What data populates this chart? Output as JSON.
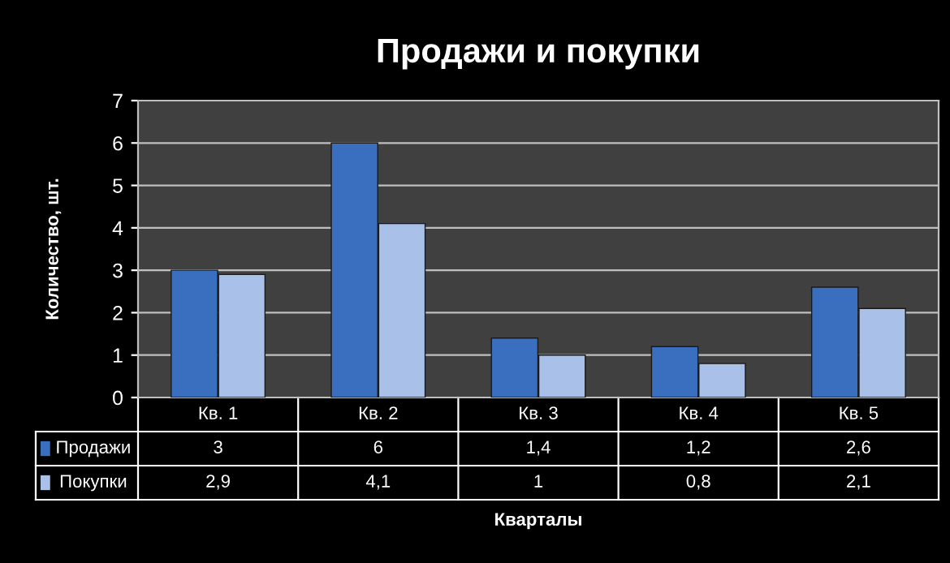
{
  "chart_data": {
    "type": "bar",
    "title": "Продажи и покупки",
    "annotations": [
      "Кварталы"
    ],
    "ylabel": "Количество, шт.",
    "categories": [
      "Кв. 1",
      "Кв. 2",
      "Кв. 3",
      "Кв. 4",
      "Кв. 5"
    ],
    "series": [
      {
        "name": "Продажи",
        "color": "#3a6fc0",
        "values": [
          3,
          6,
          1.4,
          1.2,
          2.6
        ],
        "value_labels": [
          "3",
          "6",
          "1,4",
          "1,2",
          "2,6"
        ]
      },
      {
        "name": "Покупки",
        "color": "#a9c1e8",
        "values": [
          2.9,
          4.1,
          1,
          0.8,
          2.1
        ],
        "value_labels": [
          "2,9",
          "4,1",
          "1",
          "0,8",
          "2,1"
        ]
      }
    ],
    "ylim": [
      0,
      7
    ],
    "yticks": [
      0,
      1,
      2,
      3,
      4,
      5,
      6,
      7
    ],
    "grid": "y",
    "legend": "bottom left"
  }
}
